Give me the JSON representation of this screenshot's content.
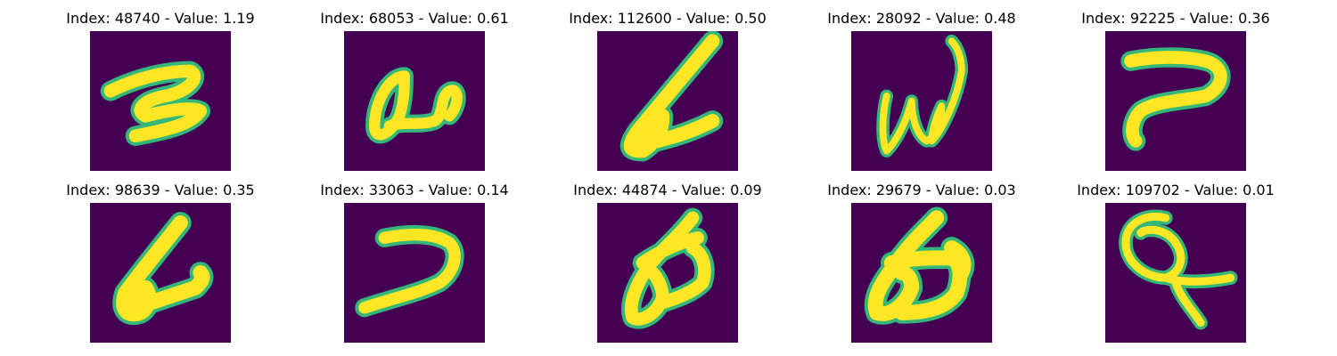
{
  "figure": {
    "panels": [
      {
        "title": "Index: 48740 - Value: 1.19",
        "glyph": "handwritten-glyph-z-like"
      },
      {
        "title": "Index: 68053 - Value: 0.61",
        "glyph": "handwritten-glyph-a-loop"
      },
      {
        "title": "Index: 112600 - Value: 0.50",
        "glyph": "handwritten-glyph-d-slant"
      },
      {
        "title": "Index: 28092 - Value: 0.48",
        "glyph": "handwritten-glyph-w-script"
      },
      {
        "title": "Index: 92225 - Value: 0.36",
        "glyph": "handwritten-glyph-hook"
      },
      {
        "title": "Index: 98639 - Value: 0.35",
        "glyph": "handwritten-glyph-d-slant"
      },
      {
        "title": "Index: 33063 - Value: 0.14",
        "glyph": "handwritten-glyph-curve"
      },
      {
        "title": "Index: 44874 - Value: 0.09",
        "glyph": "handwritten-glyph-d-slant"
      },
      {
        "title": "Index: 29679 - Value: 0.03",
        "glyph": "handwritten-glyph-d-blob"
      },
      {
        "title": "Index: 109702 - Value: 0.01",
        "glyph": "handwritten-glyph-q-loop"
      }
    ]
  },
  "colors": {
    "background": "#440154",
    "stroke": "#fde725",
    "edge": "#35b779",
    "edge_dark": "#21918c"
  }
}
